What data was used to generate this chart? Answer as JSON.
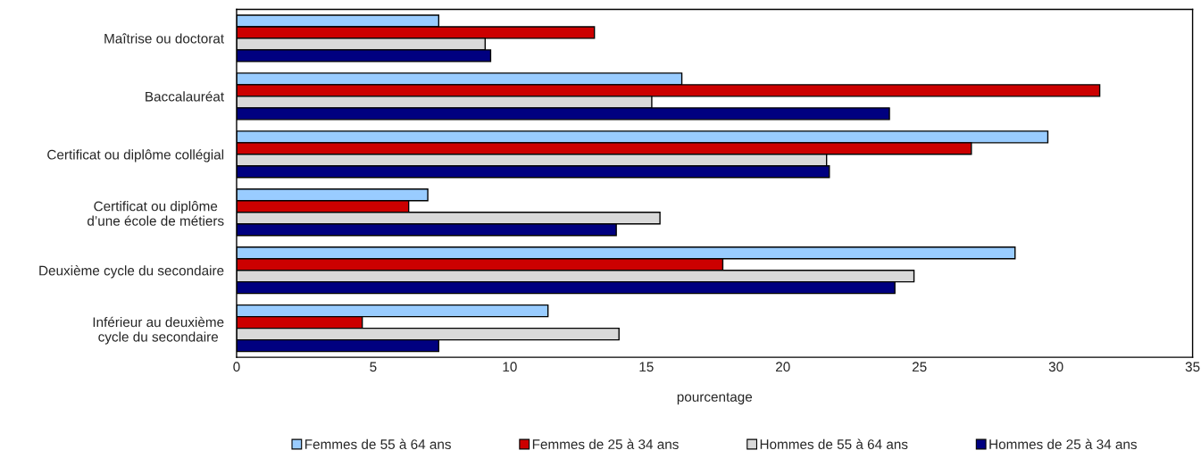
{
  "chart_data": {
    "type": "bar",
    "orientation": "horizontal",
    "xlabel": "pourcentage",
    "categories": [
      "Maîtrise ou doctorat",
      "Baccalauréat",
      "Certificat ou diplôme collégial",
      "Certificat ou diplôme\nd’une école de métiers",
      "Deuxième cycle du secondaire",
      "Inférieur au deuxième\ncycle du secondaire"
    ],
    "series": [
      {
        "name": "Femmes de 55 à 64 ans",
        "color": "#99ccff",
        "values": [
          7.4,
          16.3,
          29.7,
          7.0,
          28.5,
          11.4
        ]
      },
      {
        "name": "Femmes de 25 à 34 ans",
        "color": "#cc0000",
        "values": [
          13.1,
          31.6,
          26.9,
          6.3,
          17.8,
          4.6
        ]
      },
      {
        "name": "Hommes de 55 à 64 ans",
        "color": "#d9d9d9",
        "values": [
          9.1,
          15.2,
          21.6,
          15.5,
          24.8,
          14.0
        ]
      },
      {
        "name": "Hommes de 25 à 34 ans",
        "color": "#000080",
        "values": [
          9.3,
          23.9,
          21.7,
          13.9,
          24.1,
          7.4
        ]
      }
    ],
    "xlim": [
      0,
      35
    ],
    "xticks": [
      0,
      5,
      10,
      15,
      20,
      25,
      30,
      35
    ],
    "grid": false,
    "legend": "bottom"
  }
}
